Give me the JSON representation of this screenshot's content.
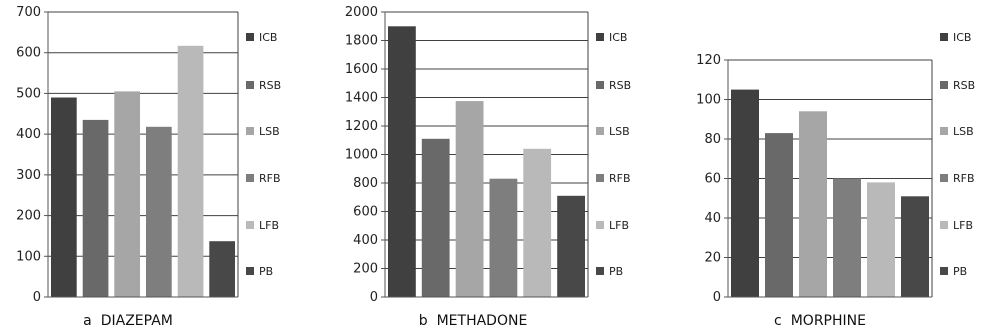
{
  "colors": {
    "ICB": "#404040",
    "RSB": "#696969",
    "LSB": "#a6a6a6",
    "RFB": "#7e7e7e",
    "LFB": "#b9b9b9",
    "PB": "#484848"
  },
  "chart_data": [
    {
      "type": "bar",
      "caption_letter": "a",
      "caption_title": "DIAZEPAM",
      "categories": [
        "ICB",
        "RSB",
        "LSB",
        "RFB",
        "LFB",
        "PB"
      ],
      "values": [
        490,
        435,
        505,
        418,
        617,
        137
      ],
      "ylim": [
        0,
        700
      ],
      "yticks": [
        0,
        100,
        200,
        300,
        400,
        500,
        600,
        700
      ],
      "grid": true,
      "legend": "right"
    },
    {
      "type": "bar",
      "caption_letter": "b",
      "caption_title": "METHADONE",
      "categories": [
        "ICB",
        "RSB",
        "LSB",
        "RFB",
        "LFB",
        "PB"
      ],
      "values": [
        1900,
        1110,
        1375,
        830,
        1040,
        710
      ],
      "ylim": [
        0,
        2000
      ],
      "yticks": [
        0,
        200,
        400,
        600,
        800,
        1000,
        1200,
        1400,
        1600,
        1800,
        2000
      ],
      "grid": true,
      "legend": "right"
    },
    {
      "type": "bar",
      "caption_letter": "c",
      "caption_title": "MORPHINE",
      "categories": [
        "ICB",
        "RSB",
        "LSB",
        "RFB",
        "LFB",
        "PB"
      ],
      "values": [
        105,
        83,
        94,
        60,
        58,
        51
      ],
      "ylim": [
        0,
        120
      ],
      "yticks": [
        0,
        20,
        40,
        60,
        80,
        100,
        120
      ],
      "grid": true,
      "legend": "right"
    }
  ]
}
